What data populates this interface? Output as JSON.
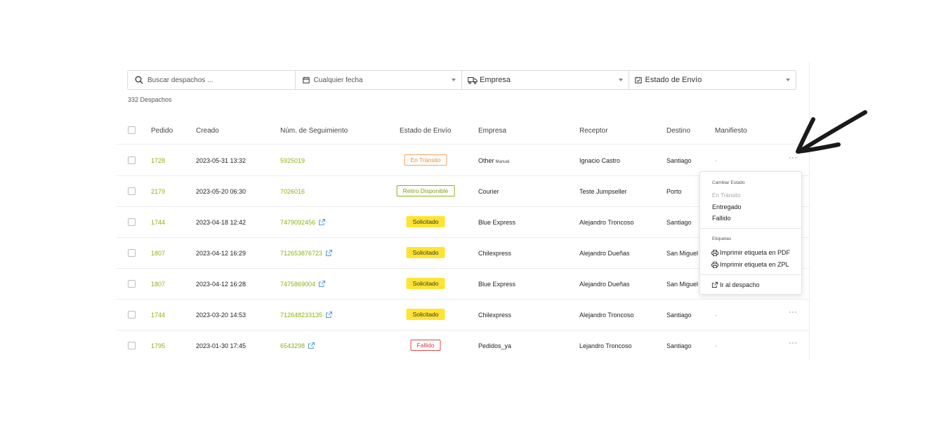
{
  "filters": {
    "search_placeholder": "Buscar despachos ...",
    "date_label": "Cualquier fecha",
    "company_label": "Empresa",
    "status_label": "Estado de Envío"
  },
  "count": "332 Despachos",
  "columns": [
    "Pedido",
    "Creado",
    "Núm. de Seguimiento",
    "Estado de Envío",
    "Empresa",
    "Receptor",
    "Destino",
    "Manifiesto"
  ],
  "rows": [
    {
      "order": "1728",
      "created": "2023-05-31 13:32",
      "tracking": "5925019",
      "status": "En Tránsito",
      "company": "Other",
      "company_tag": "Manual",
      "receiver": "Ignacio Castro",
      "destination": "Santiago",
      "manifest": "-"
    },
    {
      "order": "2179",
      "created": "2023-05-20 06:30",
      "tracking": "7026016",
      "status": "Retiro Disponible",
      "company": "Courier",
      "receiver": "Teste Jumpseller",
      "destination": "Porto",
      "manifest": ""
    },
    {
      "order": "1744",
      "created": "2023-04-18 12:42",
      "tracking": "7479092456",
      "status": "Solicitado",
      "company": "Blue Express",
      "receiver": "Alejandro Troncoso",
      "destination": "Santiago",
      "manifest": ""
    },
    {
      "order": "1807",
      "created": "2023-04-12 16:29",
      "tracking": "712653876723",
      "status": "Solicitado",
      "company": "Chilexpress",
      "receiver": "Alejandro Dueñas",
      "destination": "San Miguel",
      "manifest": ""
    },
    {
      "order": "1807",
      "created": "2023-04-12 16:28",
      "tracking": "7475869004",
      "status": "Solicitado",
      "company": "Blue Express",
      "receiver": "Alejandro Dueñas",
      "destination": "San Miguel",
      "manifest": ""
    },
    {
      "order": "1744",
      "created": "2023-03-20 14:53",
      "tracking": "712648233135",
      "status": "Solicitado",
      "company": "Chilexpress",
      "receiver": "Alejandro Troncoso",
      "destination": "Santiago",
      "manifest": "-"
    },
    {
      "order": "1795",
      "created": "2023-01-30 17:45",
      "tracking": "6543298",
      "status": "Fallido",
      "company": "Pedidos_ya",
      "receiver": "Lejandro Troncoso",
      "destination": "Santiago",
      "manifest": "-"
    }
  ],
  "row_menu_label": "···",
  "menu": {
    "change_status_header": "Cambiar Estado",
    "status_current": "En Tránsito",
    "status_delivered": "Entregado",
    "status_failed": "Fallido",
    "labels_header": "Etiquetas",
    "print_pdf": "Imprimir etiqueta en PDF",
    "print_zpl": "Imprimir etiqueta en ZPL",
    "go_to_shipment": "Ir al despacho"
  },
  "colors": {
    "accent_green": "#8bb312",
    "transit_orange": "#f08c3a",
    "requested_yellow": "#ffe433",
    "failed_red": "#d63b40"
  }
}
